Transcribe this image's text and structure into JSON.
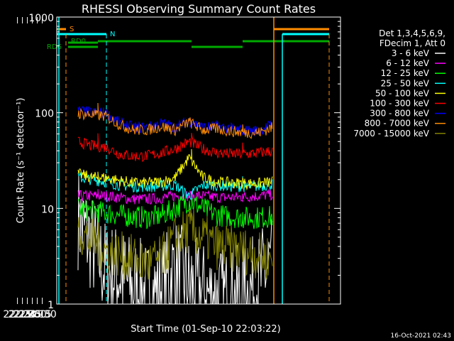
{
  "chart_data": {
    "type": "line",
    "title": "RHESSI Observing Summary Count Rates",
    "xlabel": "Start Time (01-Sep-10 22:03:22)",
    "ylabel": "Count Rate (s⁻¹ detector⁻¹)",
    "x_scale": "time",
    "x_range_minutes": [
      0,
      42
    ],
    "x_ticks": [
      {
        "label": "22:15",
        "minute": 11.6
      },
      {
        "label": "22:30",
        "minute": 26.6
      },
      {
        "label": "22:45",
        "minute": 41.6
      },
      {
        "label": "23:00",
        "minute": 56.6
      },
      {
        "label": "23:15",
        "minute": 71.6
      },
      {
        "label": "23:30",
        "minute": 86.6
      }
    ],
    "y_scale": "log",
    "ylim": [
      1,
      1000
    ],
    "y_ticks": [
      {
        "label": "1",
        "value": 1
      },
      {
        "label": "10",
        "value": 10
      },
      {
        "label": "100",
        "value": 100
      },
      {
        "label": "1000",
        "value": 1000
      }
    ],
    "legend": {
      "header": [
        "Det 1,3,4,5,6,9,",
        "FDecim 1, Att 0"
      ],
      "placement": "right"
    },
    "flags": [
      {
        "name": "S",
        "color": "#ff8c00"
      },
      {
        "name": "N",
        "color": "#00ffff"
      },
      {
        "name": "RD0",
        "color": "#00aa00"
      },
      {
        "name": "RD6",
        "color": "#00aa00"
      }
    ],
    "series": [
      {
        "name": "3 - 6 keV",
        "color": "#ffffff",
        "levels": [
          8,
          4.2,
          2.2,
          2.0,
          1.5,
          1.3,
          1.4,
          2.4,
          1.5,
          1.3,
          1.2,
          1.1,
          1.3,
          1.6,
          3.0
        ]
      },
      {
        "name": "6 - 12 keV",
        "color": "#ff00ff",
        "levels": [
          13.5,
          13.5,
          13.5,
          13.0,
          12.5,
          12.5,
          12.8,
          13.5,
          13.5,
          13.5,
          13.0,
          13.0,
          13.2,
          13.5,
          14.0
        ]
      },
      {
        "name": "12 - 25 keV",
        "color": "#00ff00",
        "levels": [
          10.0,
          9.3,
          9.0,
          8.5,
          8.2,
          8.0,
          8.4,
          10.0,
          12.0,
          10.0,
          8.5,
          8.2,
          8.0,
          8.0,
          8.2
        ]
      },
      {
        "name": "25 - 50 keV",
        "color": "#00ffff",
        "levels": [
          21.0,
          20.0,
          19.0,
          17.5,
          17.0,
          16.8,
          17.2,
          17.5,
          13.5,
          17.5,
          17.5,
          17.0,
          17.0,
          17.0,
          18.0
        ]
      },
      {
        "name": "50 - 100 keV",
        "color": "#ffff00",
        "levels": [
          23.0,
          21.0,
          21.0,
          19.5,
          18.5,
          18.5,
          19.0,
          21.0,
          34.0,
          21.0,
          19.0,
          18.5,
          18.2,
          18.2,
          19.0
        ]
      },
      {
        "name": "100 - 300 keV",
        "color": "#ff0000",
        "levels": [
          50.0,
          45.0,
          44.0,
          37.0,
          35.0,
          35.5,
          38.0,
          42.0,
          50.0,
          42.0,
          38.0,
          37.0,
          37.0,
          38.0,
          40.0
        ]
      },
      {
        "name": "300 - 800 keV",
        "color": "#0000ff",
        "levels": [
          105.0,
          100.0,
          100.0,
          78.0,
          70.0,
          70.0,
          78.0,
          70.0,
          82.0,
          70.0,
          72.0,
          68.0,
          65.0,
          65.0,
          75.0
        ]
      },
      {
        "name": "800 - 7000 keV",
        "color": "#ff8c00",
        "levels": [
          98.0,
          95.0,
          92.0,
          75.0,
          66.0,
          66.0,
          72.0,
          66.0,
          80.0,
          66.0,
          68.0,
          64.0,
          62.0,
          62.0,
          70.0
        ]
      },
      {
        "name": "7000 - 15000 keV",
        "color": "#808000",
        "levels": [
          6.0,
          4.5,
          3.6,
          3.3,
          3.0,
          2.6,
          3.0,
          4.8,
          6.0,
          5.0,
          4.0,
          3.8,
          3.6,
          3.2,
          3.0
        ]
      }
    ]
  },
  "timestamp": "16-Oct-2021 02:43"
}
